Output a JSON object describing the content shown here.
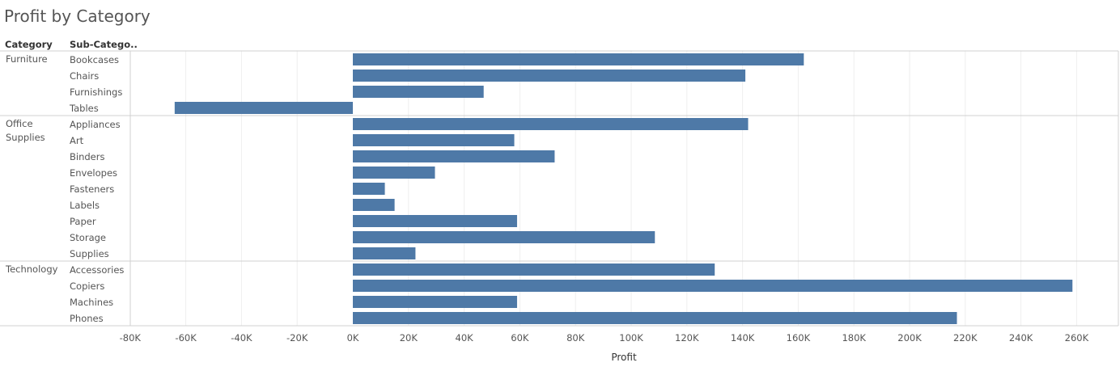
{
  "title": "Profit by Category",
  "headers": {
    "category": "Category",
    "subcategory": "Sub-Catego.."
  },
  "colors": {
    "bar": "#4e79a7",
    "grid": "#eeeeee",
    "divider": "#d0d0d0",
    "text": "#555555"
  },
  "chart_data": {
    "type": "bar",
    "orientation": "horizontal",
    "title": "Profit by Category",
    "xlabel": "Profit",
    "xlim": [
      -80000,
      270000
    ],
    "x_ticks": [
      -80000,
      -60000,
      -40000,
      -20000,
      0,
      20000,
      40000,
      60000,
      80000,
      100000,
      120000,
      140000,
      160000,
      180000,
      200000,
      220000,
      240000,
      260000
    ],
    "x_tick_labels": [
      "-80K",
      "-60K",
      "-40K",
      "-20K",
      "0K",
      "20K",
      "40K",
      "60K",
      "80K",
      "100K",
      "120K",
      "140K",
      "160K",
      "180K",
      "200K",
      "220K",
      "240K",
      "260K"
    ],
    "grid": true,
    "groups": [
      {
        "category": "Furniture",
        "category_lines": [
          "Furniture"
        ],
        "items": [
          {
            "name": "Bookcases",
            "value": 162000
          },
          {
            "name": "Chairs",
            "value": 141000
          },
          {
            "name": "Furnishings",
            "value": 47000
          },
          {
            "name": "Tables",
            "value": -64000
          }
        ]
      },
      {
        "category": "Office Supplies",
        "category_lines": [
          "Office",
          "Supplies"
        ],
        "items": [
          {
            "name": "Appliances",
            "value": 142000
          },
          {
            "name": "Art",
            "value": 58000
          },
          {
            "name": "Binders",
            "value": 72500
          },
          {
            "name": "Envelopes",
            "value": 29500
          },
          {
            "name": "Fasteners",
            "value": 11500
          },
          {
            "name": "Labels",
            "value": 15000
          },
          {
            "name": "Paper",
            "value": 59000
          },
          {
            "name": "Storage",
            "value": 108500
          },
          {
            "name": "Supplies",
            "value": 22500
          }
        ]
      },
      {
        "category": "Technology",
        "category_lines": [
          "Technology"
        ],
        "items": [
          {
            "name": "Accessories",
            "value": 130000
          },
          {
            "name": "Copiers",
            "value": 258500
          },
          {
            "name": "Machines",
            "value": 59000
          },
          {
            "name": "Phones",
            "value": 217000
          }
        ]
      }
    ]
  }
}
